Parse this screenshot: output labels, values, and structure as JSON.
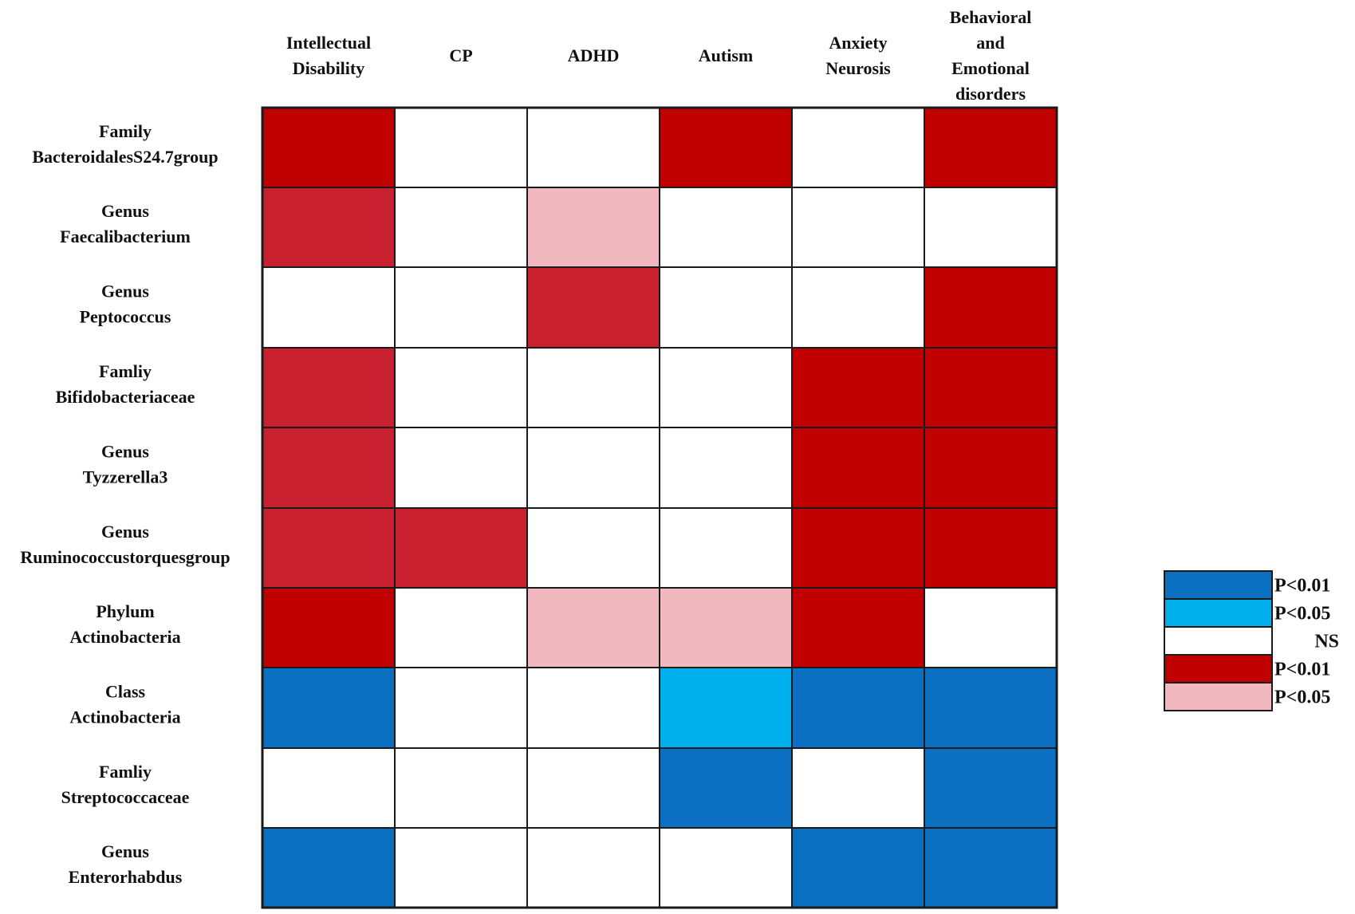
{
  "chart_data": {
    "type": "heatmap",
    "columns": [
      [
        "Intellectual",
        "Disability"
      ],
      [
        "CP"
      ],
      [
        "ADHD"
      ],
      [
        "Autism"
      ],
      [
        "Anxiety",
        "Neurosis"
      ],
      [
        "Behavioral",
        "and",
        "Emotional",
        "disorders"
      ]
    ],
    "rows": [
      [
        "Family",
        "BacteroidalesS24.7group"
      ],
      [
        "Genus",
        "Faecalibacterium"
      ],
      [
        "Genus",
        "Peptococcus"
      ],
      [
        "Famliy",
        "Bifidobacteriaceae"
      ],
      [
        "Genus",
        "Tyzzerella3"
      ],
      [
        "Genus",
        "Ruminococcustorquesgroup"
      ],
      [
        "Phylum",
        "Actinobacteria"
      ],
      [
        "Class",
        "Actinobacteria"
      ],
      [
        "Famliy",
        "Streptococcaceae"
      ],
      [
        "Genus",
        "Enterorhabdus"
      ]
    ],
    "categories": {
      "neg_p001": "P<0.01",
      "neg_p005": "P<0.05",
      "ns": "NS",
      "pos_p001": "P<0.01",
      "pos_p005": "P<0.05"
    },
    "values": [
      [
        "pos_p001",
        "ns",
        "ns",
        "pos_p001",
        "ns",
        "pos_p001"
      ],
      [
        "pos_p001",
        "ns",
        "pos_p005",
        "ns",
        "ns",
        "ns"
      ],
      [
        "ns",
        "ns",
        "pos_p001",
        "ns",
        "ns",
        "pos_p001"
      ],
      [
        "pos_p001",
        "ns",
        "ns",
        "ns",
        "pos_p001",
        "pos_p001"
      ],
      [
        "pos_p001",
        "ns",
        "ns",
        "ns",
        "pos_p001",
        "pos_p001"
      ],
      [
        "pos_p001",
        "pos_p001",
        "ns",
        "ns",
        "pos_p001",
        "pos_p001"
      ],
      [
        "pos_p001",
        "ns",
        "pos_p005",
        "pos_p005",
        "pos_p001",
        "ns"
      ],
      [
        "neg_p001",
        "ns",
        "ns",
        "neg_p005",
        "neg_p001",
        "neg_p001"
      ],
      [
        "ns",
        "ns",
        "ns",
        "neg_p001",
        "ns",
        "neg_p001"
      ],
      [
        "neg_p001",
        "ns",
        "ns",
        "ns",
        "neg_p001",
        "neg_p001"
      ]
    ],
    "colors": {
      "neg_p001": "#0b6fc2",
      "neg_p005": "#00b0ec",
      "ns": "#ffffff",
      "pos_p001": "#c00000",
      "pos_p005": "#f2b8bf",
      "pos_p001_alt": "#c8202e"
    },
    "legend": {
      "position": "right",
      "order": [
        "neg_p001",
        "neg_p005",
        "ns",
        "pos_p001",
        "pos_p005"
      ],
      "labels": [
        "P<0.01",
        "P<0.05",
        "NS",
        "P<0.01",
        "P<0.05"
      ]
    }
  }
}
